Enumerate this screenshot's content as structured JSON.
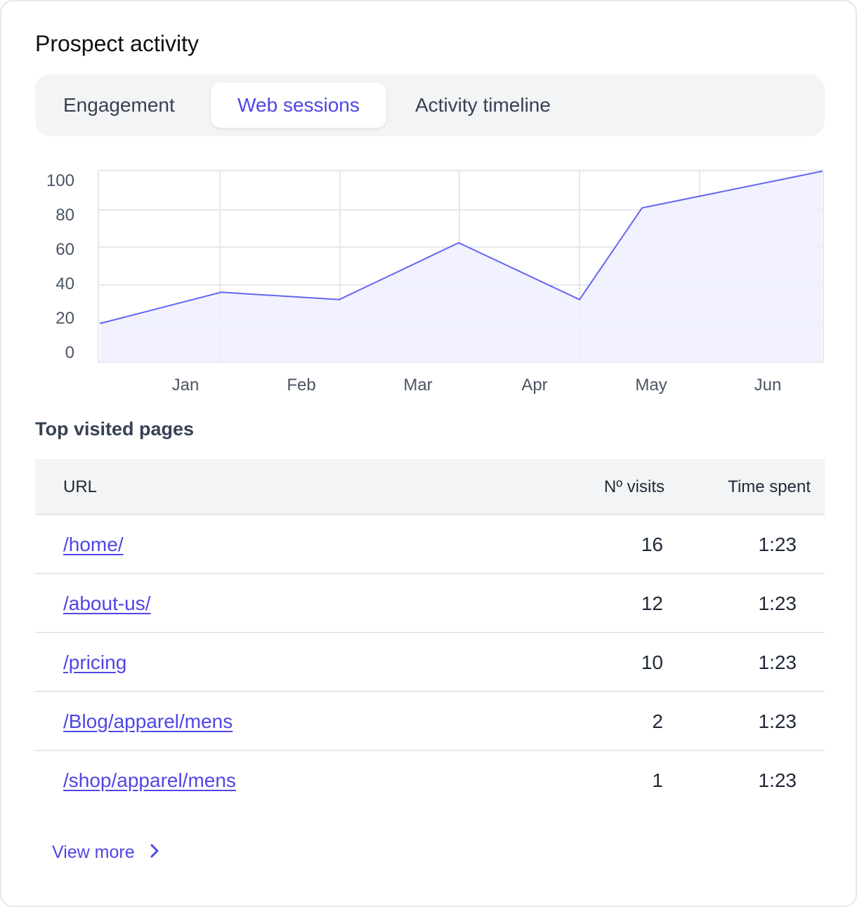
{
  "header": {
    "title": "Prospect activity"
  },
  "tabs": [
    {
      "label": "Engagement",
      "active": false
    },
    {
      "label": "Web sessions",
      "active": true
    },
    {
      "label": "Activity timeline",
      "active": false
    }
  ],
  "chart_data": {
    "type": "area",
    "title": "",
    "xlabel": "",
    "ylabel": "",
    "x_ticks": [
      "Jan",
      "Feb",
      "Mar",
      "Apr",
      "May",
      "Jun"
    ],
    "y_ticks": [
      "0",
      "20",
      "40",
      "60",
      "80",
      "100"
    ],
    "ylim": [
      0,
      100
    ],
    "grid": true,
    "series": [
      {
        "values": [
          17,
          34,
          30,
          61,
          30,
          80,
          100
        ]
      }
    ],
    "colors": {
      "line": "#6366f1",
      "fill": "#eef0fd",
      "grid": "#e5e7eb"
    }
  },
  "top_pages": {
    "title": "Top visited pages",
    "columns": {
      "url": "URL",
      "visits": "Nº visits",
      "time": "Time spent"
    },
    "rows": [
      {
        "url": "/home/",
        "visits": "16",
        "time": "1:23"
      },
      {
        "url": "/about-us/",
        "visits": "12",
        "time": "1:23"
      },
      {
        "url": "/pricing",
        "visits": "10",
        "time": "1:23"
      },
      {
        "url": "/Blog/apparel/mens",
        "visits": "2",
        "time": "1:23"
      },
      {
        "url": "/shop/apparel/mens",
        "visits": "1",
        "time": "1:23"
      }
    ],
    "view_more": "View more"
  },
  "icons": {
    "view_more": "chevron-right-icon"
  },
  "accent_color": "#4f46e5"
}
